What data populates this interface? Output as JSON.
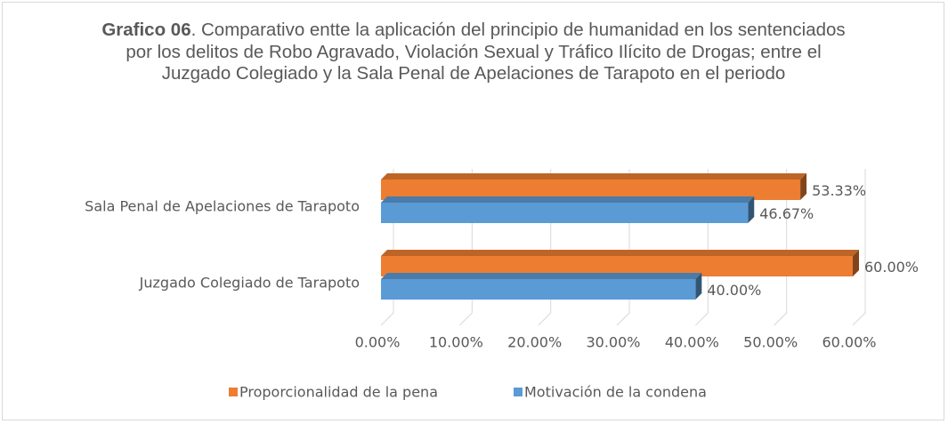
{
  "chart_data": {
    "type": "bar",
    "orientation": "horizontal",
    "title_bold": "Grafico 06",
    "title": ". Comparativo entte la aplicación del  principio de humanidad  en los sentenciados por los delitos de Robo Agravado, Violación Sexual y Tráfico Ilícito de Drogas; entre el Juzgado Colegiado y la Sala Penal de Apelaciones de Tarapoto en el periodo",
    "categories": [
      "Sala Penal de Apelaciones de Tarapoto",
      "Juzgado Colegiado de Tarapoto"
    ],
    "series": [
      {
        "name": "Proporcionalidad de la pena",
        "color": "#ed7d31",
        "values": [
          53.33,
          60
        ],
        "value_labels": [
          "53.33%",
          "60.00%"
        ]
      },
      {
        "name": "Motivación de la condena",
        "color": "#5b9bd5",
        "values": [
          46.67,
          40
        ],
        "value_labels": [
          "46.67%",
          "40.00%"
        ]
      }
    ],
    "xlim": [
      0,
      60
    ],
    "xticks": [
      {
        "value": 0,
        "label": "0.00%"
      },
      {
        "value": 10,
        "label": "10.00%"
      },
      {
        "value": 20,
        "label": "20.00%"
      },
      {
        "value": 30,
        "label": "30.00%"
      },
      {
        "value": 40,
        "label": "40.00%"
      },
      {
        "value": 50,
        "label": "50.00%"
      },
      {
        "value": 60,
        "label": "60.00%"
      }
    ],
    "grid": true,
    "legend": "bottom"
  }
}
